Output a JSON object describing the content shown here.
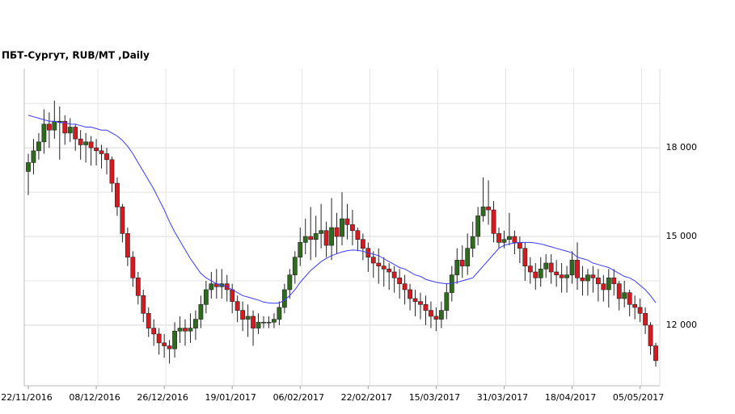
{
  "chart_data": {
    "type": "candlestick",
    "title": "ПБТ-Сургут,  RUB/MT ,Daily",
    "categories": [
      "22/11/2016",
      null,
      null,
      null,
      null,
      null,
      null,
      null,
      null,
      null,
      null,
      null,
      null,
      "08/12/2016",
      null,
      null,
      null,
      null,
      null,
      null,
      null,
      null,
      null,
      null,
      null,
      null,
      "26/12/2016",
      null,
      null,
      null,
      null,
      null,
      null,
      null,
      null,
      null,
      null,
      null,
      null,
      "19/01/2017",
      null,
      null,
      null,
      null,
      null,
      null,
      null,
      null,
      null,
      null,
      null,
      null,
      "06/02/2017",
      null,
      null,
      null,
      null,
      null,
      null,
      null,
      null,
      null,
      null,
      null,
      null,
      "22/02/2017",
      null,
      null,
      null,
      null,
      null,
      null,
      null,
      null,
      null,
      null,
      null,
      null,
      "15/03/2017",
      null,
      null,
      null,
      null,
      null,
      null,
      null,
      null,
      null,
      null,
      null,
      null,
      "31/03/2017",
      null,
      null,
      null,
      null,
      null,
      null,
      null,
      null,
      null,
      null,
      null,
      null,
      "18/04/2017",
      null,
      null,
      null,
      null,
      null,
      null,
      null,
      null,
      null,
      null,
      null,
      null,
      "05/05/2017",
      null,
      null,
      null
    ],
    "open": [
      17200,
      17500,
      17900,
      18200,
      18800,
      18600,
      18900,
      18900,
      18500,
      18700,
      18300,
      18100,
      18200,
      18000,
      17900,
      17800,
      17600,
      16800,
      16000,
      15100,
      14300,
      13600,
      13000,
      12400,
      11900,
      11700,
      11400,
      11300,
      11200,
      11800,
      11900,
      11800,
      11900,
      12200,
      12700,
      13200,
      13400,
      13300,
      13400,
      13200,
      12800,
      12500,
      12200,
      12300,
      11900,
      12100,
      12100,
      12100,
      12200,
      12600,
      13200,
      13700,
      14300,
      14800,
      15000,
      14900,
      15100,
      15200,
      14700,
      15300,
      15000,
      15600,
      15400,
      15200,
      14900,
      14600,
      14300,
      14100,
      14000,
      13900,
      13800,
      13600,
      13400,
      13200,
      12900,
      12800,
      12700,
      12500,
      12300,
      12200,
      12500,
      13100,
      13700,
      14200,
      14000,
      14600,
      15000,
      15700,
      16000,
      15900,
      15100,
      14800,
      14900,
      15000,
      14800,
      14600,
      14000,
      13800,
      13600,
      13900,
      14100,
      13800,
      13700,
      13600,
      13700,
      14200,
      13600,
      13500,
      13700,
      13600,
      13400,
      13200,
      13600,
      13400,
      12900,
      13100,
      12700,
      12600,
      12400,
      12000,
      11300
    ],
    "high": [
      17800,
      18300,
      18500,
      19300,
      19200,
      19600,
      19400,
      19100,
      19000,
      18800,
      18600,
      18500,
      18400,
      18300,
      18100,
      18000,
      17700,
      17000,
      16100,
      15300,
      14500,
      13800,
      13200,
      12600,
      12200,
      11900,
      11700,
      11500,
      12100,
      12300,
      12200,
      12400,
      12500,
      13000,
      13500,
      13800,
      13900,
      13900,
      13700,
      13400,
      13000,
      12800,
      12700,
      12500,
      12400,
      12300,
      12300,
      12400,
      12800,
      13400,
      13900,
      14500,
      15300,
      15600,
      16000,
      15700,
      16100,
      15500,
      16300,
      15800,
      16500,
      16100,
      15900,
      15300,
      15100,
      14800,
      14500,
      14600,
      14300,
      14100,
      14000,
      13900,
      13700,
      13400,
      13200,
      13100,
      13000,
      12800,
      12600,
      12800,
      13400,
      14000,
      14600,
      14700,
      15100,
      15500,
      16000,
      17000,
      16900,
      16200,
      15300,
      15200,
      15800,
      15200,
      15000,
      14800,
      14300,
      14100,
      14300,
      14400,
      14400,
      14200,
      14100,
      14000,
      14500,
      14800,
      14000,
      13900,
      14000,
      13900,
      13700,
      13900,
      13900,
      13500,
      13500,
      13200,
      13000,
      12900,
      12600,
      12100,
      11400
    ],
    "low": [
      16400,
      17100,
      17600,
      17800,
      18000,
      18300,
      17600,
      18100,
      18200,
      17900,
      17600,
      17500,
      17400,
      17400,
      17300,
      17100,
      16500,
      15700,
      14800,
      14000,
      13300,
      12700,
      12100,
      11600,
      11300,
      11000,
      10900,
      10700,
      10900,
      11400,
      11300,
      11400,
      11500,
      11900,
      12400,
      12900,
      12900,
      12900,
      12800,
      12400,
      12100,
      11800,
      11600,
      11300,
      11700,
      11900,
      11900,
      11900,
      12000,
      12400,
      12900,
      13400,
      14000,
      14400,
      14200,
      14300,
      14600,
      14300,
      14200,
      14400,
      14700,
      14900,
      14700,
      14500,
      14200,
      13800,
      13600,
      13400,
      13300,
      13200,
      13100,
      12900,
      12700,
      12500,
      12300,
      12200,
      12000,
      11900,
      11800,
      11900,
      12200,
      12800,
      13400,
      13600,
      13700,
      14300,
      14700,
      15500,
      15400,
      14800,
      14600,
      14600,
      14700,
      14400,
      14100,
      13500,
      13400,
      13200,
      13300,
      13600,
      13400,
      13300,
      13100,
      13100,
      13400,
      13200,
      13000,
      13000,
      13100,
      12800,
      12800,
      12600,
      13000,
      12500,
      12600,
      12300,
      12200,
      12100,
      11700,
      11000,
      10600
    ],
    "close": [
      17500,
      17900,
      18200,
      18800,
      18600,
      18900,
      18900,
      18500,
      18700,
      18300,
      18100,
      18200,
      18000,
      17900,
      17800,
      17600,
      16800,
      16000,
      15100,
      14300,
      13600,
      13000,
      12400,
      11900,
      11700,
      11400,
      11300,
      11200,
      11800,
      11900,
      11800,
      11900,
      12200,
      12700,
      13200,
      13400,
      13300,
      13400,
      13200,
      12800,
      12500,
      12200,
      12300,
      11900,
      12100,
      12100,
      12100,
      12200,
      12600,
      13200,
      13700,
      14300,
      14800,
      15000,
      14900,
      15100,
      15200,
      14700,
      15300,
      15000,
      15600,
      15400,
      15200,
      14900,
      14600,
      14300,
      14100,
      14000,
      13900,
      13800,
      13600,
      13400,
      13200,
      12900,
      12800,
      12700,
      12500,
      12300,
      12200,
      12500,
      13100,
      13700,
      14200,
      14000,
      14600,
      15000,
      15700,
      16000,
      15900,
      15100,
      14800,
      14900,
      15000,
      14800,
      14600,
      14000,
      13800,
      13600,
      13900,
      14100,
      13800,
      13700,
      13600,
      13700,
      14200,
      13600,
      13500,
      13700,
      13600,
      13400,
      13200,
      13600,
      13400,
      12900,
      13100,
      12700,
      12600,
      12400,
      12000,
      11300,
      10800
    ],
    "up_color": "#2e6b1f",
    "down_color": "#d71920",
    "ma": {
      "color": "#3a3aff",
      "values": [
        19100,
        19050,
        19000,
        18950,
        18900,
        18900,
        18850,
        18850,
        18800,
        18800,
        18750,
        18700,
        18700,
        18650,
        18600,
        18600,
        18500,
        18400,
        18250,
        18050,
        17800,
        17500,
        17200,
        16900,
        16600,
        16250,
        15900,
        15500,
        15150,
        14850,
        14550,
        14250,
        14000,
        13750,
        13600,
        13500,
        13400,
        13350,
        13300,
        13200,
        13100,
        13000,
        12950,
        12900,
        12850,
        12780,
        12750,
        12740,
        12750,
        12850,
        13000,
        13200,
        13450,
        13650,
        13850,
        14000,
        14150,
        14260,
        14350,
        14420,
        14480,
        14520,
        14540,
        14530,
        14500,
        14450,
        14400,
        14350,
        14250,
        14150,
        14050,
        13950,
        13900,
        13800,
        13700,
        13650,
        13550,
        13500,
        13450,
        13420,
        13400,
        13420,
        13450,
        13500,
        13550,
        13600,
        13800,
        14000,
        14200,
        14400,
        14600,
        14700,
        14750,
        14780,
        14800,
        14800,
        14800,
        14780,
        14750,
        14700,
        14650,
        14600,
        14550,
        14500,
        14450,
        14300,
        14250,
        14200,
        14100,
        14050,
        14000,
        13950,
        13850,
        13750,
        13650,
        13600,
        13500,
        13350,
        13200,
        13000,
        12760
      ]
    },
    "ylim": [
      9950,
      20680
    ],
    "yticks": [
      {
        "value": 12000,
        "label": "12 000"
      },
      {
        "value": 15000,
        "label": "15 000"
      },
      {
        "value": 18000,
        "label": "18 000"
      }
    ],
    "minor_yticks": [
      13500,
      16500,
      19500
    ],
    "grid": true
  }
}
